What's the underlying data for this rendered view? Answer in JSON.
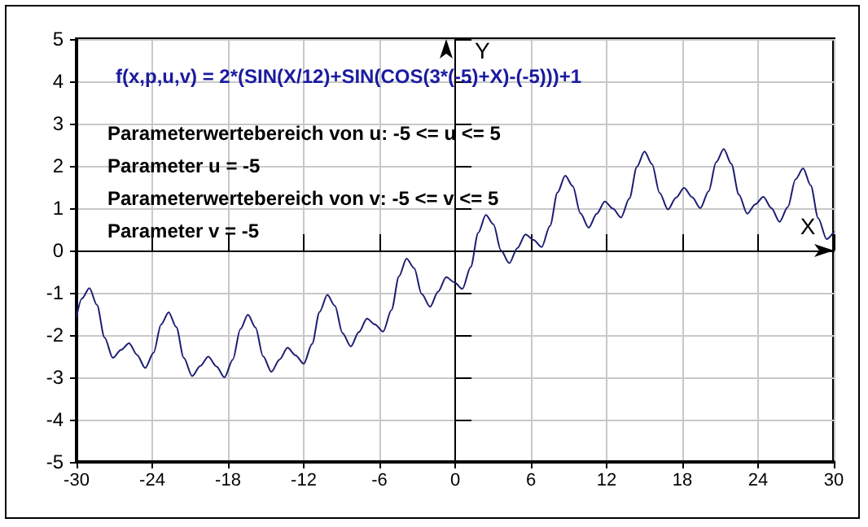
{
  "chart_data": {
    "type": "line",
    "title": "f(x,p,u,v) = 2*(SIN(X/12)+SIN(COS(3*(-5)+X)-(-5)))+1",
    "xlabel": "X",
    "ylabel": "Y",
    "annotations": [
      "Parameterwertebereich von u: -5 <= u <= 5",
      "Parameter u = -5",
      "Parameterwertebereich von v: -5 <= v <= 5",
      "Parameter v = -5"
    ],
    "x": [
      -30,
      -29.58,
      -28.98,
      -28.38,
      -27.78,
      -27.12,
      -26.48,
      -25.84,
      -25.2,
      -24.56,
      -23.9,
      -23.3,
      -22.7,
      -22.1,
      -21.5,
      -20.84,
      -20.2,
      -19.56,
      -18.92,
      -18.28,
      -17.62,
      -17.02,
      -16.42,
      -15.82,
      -15.22,
      -14.56,
      -13.92,
      -13.28,
      -12.64,
      -12,
      -11.34,
      -10.74,
      -10.13,
      -9.53,
      -8.93,
      -8.27,
      -7.63,
      -6.99,
      -6.35,
      -5.71,
      -5.05,
      -4.45,
      -3.85,
      -3.25,
      -2.65,
      -1.99,
      -1.35,
      -0.71,
      -0.07,
      0.57,
      1.23,
      1.83,
      2.43,
      3.03,
      3.63,
      4.29,
      4.93,
      5.57,
      6.21,
      6.85,
      7.51,
      8.11,
      8.72,
      9.32,
      9.92,
      10.58,
      11.22,
      11.86,
      12.5,
      13.14,
      13.8,
      14.4,
      15,
      15.6,
      16.2,
      16.86,
      17.5,
      18.14,
      18.78,
      19.42,
      20.08,
      20.68,
      21.28,
      21.88,
      22.48,
      23.14,
      23.78,
      24.42,
      25.06,
      25.7,
      26.36,
      26.96,
      27.57,
      28.17,
      28.77,
      29.43,
      30
    ],
    "series": [
      {
        "color": "#1c1c74",
        "values": [
          -1.57,
          -1.14,
          -0.89,
          -1.29,
          -2.06,
          -2.54,
          -2.35,
          -2.19,
          -2.47,
          -2.78,
          -2.42,
          -1.75,
          -1.46,
          -1.81,
          -2.54,
          -2.97,
          -2.73,
          -2.51,
          -2.74,
          -3.0,
          -2.58,
          -1.86,
          -1.52,
          -1.82,
          -2.5,
          -2.87,
          -2.58,
          -2.3,
          -2.48,
          -2.68,
          -2.21,
          -1.45,
          -1.05,
          -1.31,
          -1.95,
          -2.27,
          -1.93,
          -1.61,
          -1.75,
          -1.92,
          -1.41,
          -0.61,
          -0.19,
          -0.42,
          -1.03,
          -1.33,
          -0.97,
          -0.63,
          -0.75,
          -0.91,
          -0.39,
          0.42,
          0.84,
          0.62,
          0.0,
          -0.3,
          0.06,
          0.38,
          0.25,
          0.08,
          0.58,
          1.37,
          1.77,
          1.52,
          0.88,
          0.54,
          0.87,
          1.16,
          0.99,
          0.78,
          1.23,
          1.98,
          2.34,
          2.04,
          1.36,
          0.97,
          1.25,
          1.48,
          1.26,
          1.0,
          1.4,
          2.09,
          2.4,
          2.05,
          1.32,
          0.87,
          1.09,
          1.27,
          1.0,
          0.68,
          1.03,
          1.68,
          1.94,
          1.54,
          0.76,
          0.27,
          0.44
        ]
      }
    ],
    "xlim": [
      -30,
      30
    ],
    "xticks": [
      -30,
      -24,
      -18,
      -12,
      -6,
      0,
      6,
      12,
      18,
      24,
      30
    ],
    "ylim": [
      -5,
      5
    ],
    "yticks": [
      -5,
      -4,
      -3,
      -2,
      -1,
      0,
      1,
      2,
      3,
      4,
      5
    ],
    "grid": true,
    "marker": "none"
  }
}
